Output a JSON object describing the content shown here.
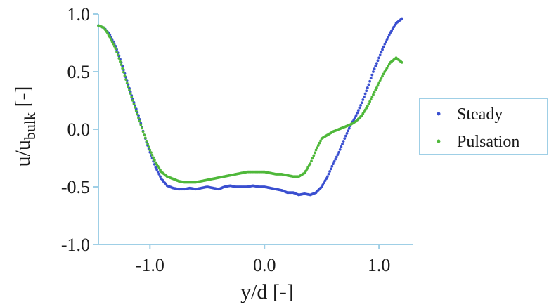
{
  "chart_data": {
    "type": "scatter",
    "xlabel": "y/d [-]",
    "ylabel": {
      "main": "u/u",
      "subscript": "bulk",
      "unit": " [-]"
    },
    "xlim": [
      -1.45,
      1.3
    ],
    "ylim": [
      -1.0,
      1.0
    ],
    "xticks": [
      {
        "value": -1.0,
        "label": "-1.0"
      },
      {
        "value": 0.0,
        "label": "0.0"
      },
      {
        "value": 1.0,
        "label": "1.0"
      }
    ],
    "yticks": [
      {
        "value": 1.0,
        "label": "1.0"
      },
      {
        "value": 0.5,
        "label": "0.5"
      },
      {
        "value": 0.0,
        "label": "0.0"
      },
      {
        "value": -0.5,
        "label": "-0.5"
      },
      {
        "value": -1.0,
        "label": "-1.0"
      }
    ],
    "grid": false,
    "legend_position": "right",
    "series": [
      {
        "name": "Steady",
        "color": "#3a4fd0",
        "x": [
          -1.45,
          -1.4,
          -1.35,
          -1.3,
          -1.25,
          -1.2,
          -1.15,
          -1.1,
          -1.05,
          -1.0,
          -0.95,
          -0.9,
          -0.85,
          -0.8,
          -0.75,
          -0.7,
          -0.65,
          -0.6,
          -0.55,
          -0.5,
          -0.45,
          -0.4,
          -0.35,
          -0.3,
          -0.25,
          -0.2,
          -0.15,
          -0.1,
          -0.05,
          0.0,
          0.05,
          0.1,
          0.15,
          0.2,
          0.25,
          0.3,
          0.35,
          0.4,
          0.45,
          0.5,
          0.55,
          0.6,
          0.65,
          0.7,
          0.75,
          0.8,
          0.85,
          0.9,
          0.95,
          1.0,
          1.05,
          1.1,
          1.15,
          1.2
        ],
        "y": [
          0.9,
          0.88,
          0.82,
          0.72,
          0.58,
          0.42,
          0.26,
          0.12,
          -0.05,
          -0.2,
          -0.33,
          -0.43,
          -0.49,
          -0.51,
          -0.52,
          -0.52,
          -0.51,
          -0.52,
          -0.51,
          -0.5,
          -0.51,
          -0.52,
          -0.5,
          -0.49,
          -0.5,
          -0.5,
          -0.5,
          -0.49,
          -0.5,
          -0.5,
          -0.51,
          -0.52,
          -0.53,
          -0.55,
          -0.55,
          -0.57,
          -0.56,
          -0.57,
          -0.55,
          -0.5,
          -0.41,
          -0.3,
          -0.2,
          -0.08,
          0.03,
          0.12,
          0.23,
          0.36,
          0.5,
          0.62,
          0.74,
          0.84,
          0.92,
          0.96
        ]
      },
      {
        "name": "Pulsation",
        "color": "#4fb83a",
        "x": [
          -1.45,
          -1.4,
          -1.35,
          -1.3,
          -1.25,
          -1.2,
          -1.15,
          -1.1,
          -1.05,
          -1.0,
          -0.95,
          -0.9,
          -0.85,
          -0.8,
          -0.75,
          -0.7,
          -0.65,
          -0.6,
          -0.55,
          -0.5,
          -0.45,
          -0.4,
          -0.35,
          -0.3,
          -0.25,
          -0.2,
          -0.15,
          -0.1,
          -0.05,
          0.0,
          0.05,
          0.1,
          0.15,
          0.2,
          0.25,
          0.3,
          0.35,
          0.4,
          0.45,
          0.5,
          0.55,
          0.6,
          0.65,
          0.7,
          0.75,
          0.8,
          0.85,
          0.9,
          0.95,
          1.0,
          1.05,
          1.1,
          1.15,
          1.2
        ],
        "y": [
          0.9,
          0.88,
          0.8,
          0.7,
          0.56,
          0.4,
          0.25,
          0.1,
          -0.05,
          -0.18,
          -0.29,
          -0.37,
          -0.41,
          -0.43,
          -0.45,
          -0.46,
          -0.46,
          -0.46,
          -0.45,
          -0.44,
          -0.43,
          -0.42,
          -0.41,
          -0.4,
          -0.39,
          -0.38,
          -0.37,
          -0.37,
          -0.37,
          -0.37,
          -0.38,
          -0.39,
          -0.39,
          -0.4,
          -0.41,
          -0.41,
          -0.38,
          -0.3,
          -0.18,
          -0.08,
          -0.05,
          -0.02,
          0.0,
          0.02,
          0.04,
          0.07,
          0.12,
          0.2,
          0.3,
          0.4,
          0.5,
          0.58,
          0.62,
          0.58
        ]
      }
    ]
  }
}
